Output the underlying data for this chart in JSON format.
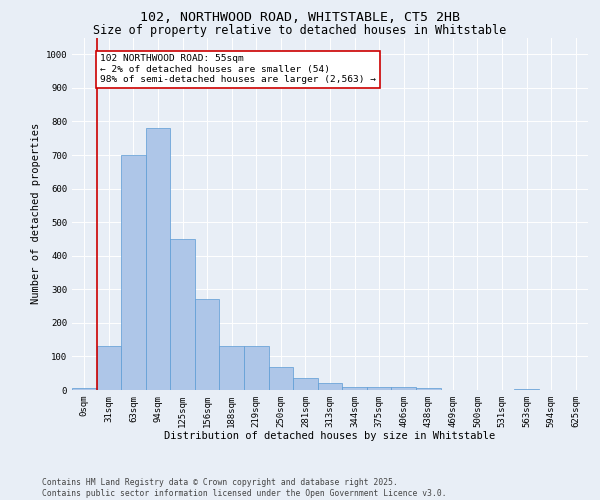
{
  "title1": "102, NORTHWOOD ROAD, WHITSTABLE, CT5 2HB",
  "title2": "Size of property relative to detached houses in Whitstable",
  "xlabel": "Distribution of detached houses by size in Whitstable",
  "ylabel": "Number of detached properties",
  "categories": [
    "0sqm",
    "31sqm",
    "63sqm",
    "94sqm",
    "125sqm",
    "156sqm",
    "188sqm",
    "219sqm",
    "250sqm",
    "281sqm",
    "313sqm",
    "344sqm",
    "375sqm",
    "406sqm",
    "438sqm",
    "469sqm",
    "500sqm",
    "531sqm",
    "563sqm",
    "594sqm",
    "625sqm"
  ],
  "values": [
    5,
    130,
    700,
    780,
    450,
    270,
    130,
    130,
    70,
    35,
    20,
    10,
    10,
    10,
    5,
    0,
    0,
    0,
    3,
    0,
    0
  ],
  "bar_color": "#aec6e8",
  "bar_edge_color": "#5b9bd5",
  "property_line_x": 1,
  "property_line_color": "#cc0000",
  "annotation_title": "102 NORTHWOOD ROAD: 55sqm",
  "annotation_line1": "← 2% of detached houses are smaller (54)",
  "annotation_line2": "98% of semi-detached houses are larger (2,563) →",
  "annotation_box_color": "#ffffff",
  "annotation_box_edge": "#cc0000",
  "ylim": [
    0,
    1050
  ],
  "yticks": [
    0,
    100,
    200,
    300,
    400,
    500,
    600,
    700,
    800,
    900,
    1000
  ],
  "background_color": "#e8eef6",
  "footer1": "Contains HM Land Registry data © Crown copyright and database right 2025.",
  "footer2": "Contains public sector information licensed under the Open Government Licence v3.0.",
  "title1_fontsize": 9.5,
  "title2_fontsize": 8.5,
  "xlabel_fontsize": 7.5,
  "ylabel_fontsize": 7.5,
  "tick_fontsize": 6.5,
  "annotation_fontsize": 6.8,
  "footer_fontsize": 5.8
}
